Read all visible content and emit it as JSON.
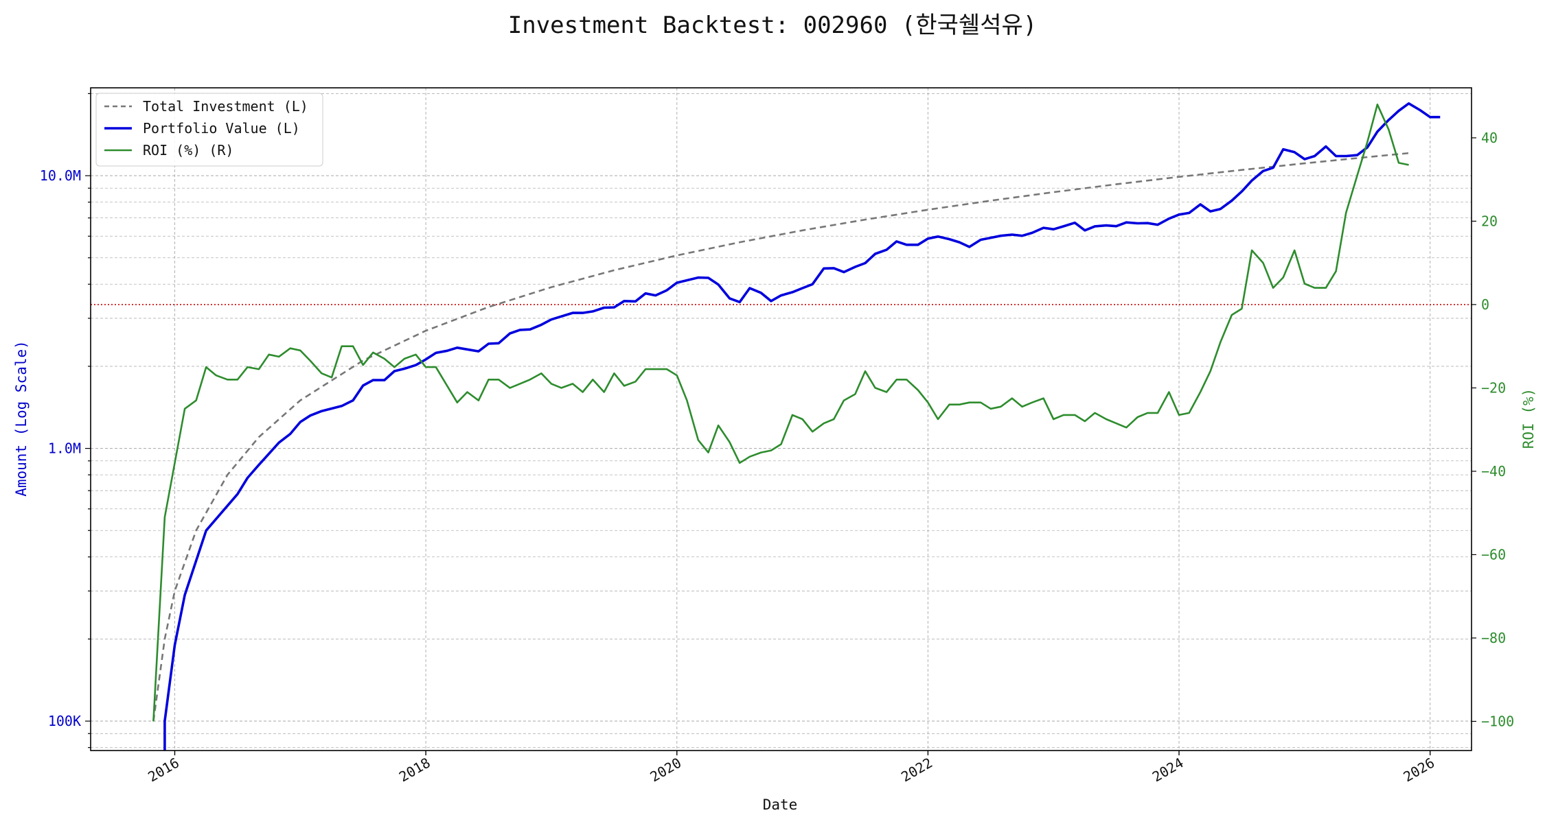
{
  "chart_data": {
    "type": "line",
    "title": "Investment Backtest: 002960 (한국쉘석유)",
    "xlabel": "Date",
    "ylabel_left": "Amount (Log Scale)",
    "ylabel_right": "ROI (%)",
    "left_scale": "log",
    "xlim": [
      2015.33,
      2026.33
    ],
    "ylim_left": [
      78000,
      21000000
    ],
    "ylim_right": [
      -107,
      52
    ],
    "x_ticks": [
      2016,
      2018,
      2020,
      2022,
      2024,
      2026
    ],
    "x_tick_labels": [
      "2016",
      "2018",
      "2020",
      "2022",
      "2024",
      "2026"
    ],
    "y_left_ticks": [
      100000,
      1000000,
      10000000
    ],
    "y_left_tick_labels": [
      "100K",
      "1.0M",
      "10.0M"
    ],
    "y_right_ticks": [
      -100,
      -80,
      -60,
      -40,
      -20,
      0,
      20,
      40
    ],
    "y_right_tick_labels": [
      "−100",
      "−80",
      "−60",
      "−40",
      "−20",
      "0",
      "20",
      "40"
    ],
    "zero_line_roi": 0,
    "grid": true,
    "legend_position": "top-left",
    "colors": {
      "total_investment": "#777777",
      "portfolio_value": "#0000dd",
      "roi": "#2d8c2d",
      "zero_line": "#cc0000",
      "left_axis_text": "#0000cc",
      "right_axis_text": "#2d8c2d",
      "grid": "#b0b0b0"
    },
    "series": [
      {
        "name": "Total Investment (L)",
        "axis": "left",
        "style": "dashed",
        "points": [
          [
            2015.83,
            100000
          ],
          [
            2015.92,
            200000
          ],
          [
            2016.0,
            300000
          ],
          [
            2016.17,
            500000
          ],
          [
            2016.42,
            800000
          ],
          [
            2016.67,
            1100000
          ],
          [
            2017.0,
            1500000
          ],
          [
            2017.5,
            2100000
          ],
          [
            2018.0,
            2700000
          ],
          [
            2018.5,
            3300000
          ],
          [
            2019.0,
            3900000
          ],
          [
            2019.5,
            4500000
          ],
          [
            2020.0,
            5100000
          ],
          [
            2020.5,
            5700000
          ],
          [
            2021.0,
            6300000
          ],
          [
            2021.5,
            6900000
          ],
          [
            2022.0,
            7500000
          ],
          [
            2022.5,
            8100000
          ],
          [
            2023.0,
            8700000
          ],
          [
            2023.5,
            9300000
          ],
          [
            2024.0,
            9900000
          ],
          [
            2024.5,
            10500000
          ],
          [
            2025.0,
            11100000
          ],
          [
            2025.5,
            11700000
          ],
          [
            2025.83,
            12100000
          ]
        ]
      },
      {
        "name": "Portfolio Value (L)",
        "axis": "left",
        "style": "solid-thick",
        "points": [
          [
            2015.92,
            78000
          ],
          [
            2015.92,
            100000
          ],
          [
            2016.0,
            190000
          ],
          [
            2016.08,
            290000
          ],
          [
            2016.25,
            500000
          ],
          [
            2016.5,
            680000
          ],
          [
            2016.58,
            780000
          ],
          [
            2016.67,
            870000
          ],
          [
            2016.83,
            1050000
          ],
          [
            2016.92,
            1130000
          ],
          [
            2017.0,
            1250000
          ],
          [
            2017.08,
            1320000
          ],
          [
            2017.17,
            1370000
          ],
          [
            2017.33,
            1430000
          ],
          [
            2017.42,
            1500000
          ],
          [
            2017.5,
            1700000
          ],
          [
            2017.58,
            1780000
          ],
          [
            2017.67,
            1780000
          ],
          [
            2017.75,
            1920000
          ],
          [
            2017.83,
            1960000
          ],
          [
            2017.92,
            2020000
          ],
          [
            2018.0,
            2120000
          ],
          [
            2018.08,
            2240000
          ],
          [
            2018.17,
            2280000
          ],
          [
            2018.25,
            2340000
          ],
          [
            2018.42,
            2270000
          ],
          [
            2018.5,
            2420000
          ],
          [
            2018.58,
            2430000
          ],
          [
            2018.67,
            2640000
          ],
          [
            2018.75,
            2720000
          ],
          [
            2018.83,
            2730000
          ],
          [
            2018.92,
            2840000
          ],
          [
            2019.0,
            2970000
          ],
          [
            2019.17,
            3140000
          ],
          [
            2019.25,
            3140000
          ],
          [
            2019.33,
            3180000
          ],
          [
            2019.42,
            3280000
          ],
          [
            2019.5,
            3290000
          ],
          [
            2019.58,
            3470000
          ],
          [
            2019.67,
            3460000
          ],
          [
            2019.75,
            3700000
          ],
          [
            2019.83,
            3640000
          ],
          [
            2019.92,
            3800000
          ],
          [
            2020.0,
            4050000
          ],
          [
            2020.17,
            4230000
          ],
          [
            2020.25,
            4220000
          ],
          [
            2020.33,
            3990000
          ],
          [
            2020.42,
            3550000
          ],
          [
            2020.5,
            3440000
          ],
          [
            2020.58,
            3870000
          ],
          [
            2020.67,
            3720000
          ],
          [
            2020.75,
            3470000
          ],
          [
            2020.83,
            3640000
          ],
          [
            2020.92,
            3740000
          ],
          [
            2021.0,
            3870000
          ],
          [
            2021.08,
            4000000
          ],
          [
            2021.17,
            4570000
          ],
          [
            2021.25,
            4580000
          ],
          [
            2021.33,
            4430000
          ],
          [
            2021.42,
            4630000
          ],
          [
            2021.5,
            4780000
          ],
          [
            2021.58,
            5170000
          ],
          [
            2021.67,
            5350000
          ],
          [
            2021.75,
            5740000
          ],
          [
            2021.83,
            5580000
          ],
          [
            2021.92,
            5580000
          ],
          [
            2022.0,
            5880000
          ],
          [
            2022.08,
            5980000
          ],
          [
            2022.17,
            5850000
          ],
          [
            2022.25,
            5700000
          ],
          [
            2022.33,
            5480000
          ],
          [
            2022.42,
            5820000
          ],
          [
            2022.5,
            5920000
          ],
          [
            2022.58,
            6020000
          ],
          [
            2022.67,
            6080000
          ],
          [
            2022.75,
            6020000
          ],
          [
            2022.83,
            6170000
          ],
          [
            2022.92,
            6440000
          ],
          [
            2023.0,
            6360000
          ],
          [
            2023.08,
            6520000
          ],
          [
            2023.17,
            6720000
          ],
          [
            2023.25,
            6300000
          ],
          [
            2023.33,
            6520000
          ],
          [
            2023.42,
            6570000
          ],
          [
            2023.5,
            6530000
          ],
          [
            2023.58,
            6740000
          ],
          [
            2023.67,
            6690000
          ],
          [
            2023.75,
            6700000
          ],
          [
            2023.83,
            6610000
          ],
          [
            2023.92,
            6960000
          ],
          [
            2024.0,
            7200000
          ],
          [
            2024.08,
            7300000
          ],
          [
            2024.17,
            7850000
          ],
          [
            2024.25,
            7400000
          ],
          [
            2024.33,
            7550000
          ],
          [
            2024.42,
            8100000
          ],
          [
            2024.5,
            8750000
          ],
          [
            2024.58,
            9600000
          ],
          [
            2024.67,
            10400000
          ],
          [
            2024.75,
            10700000
          ],
          [
            2024.83,
            12500000
          ],
          [
            2024.92,
            12200000
          ],
          [
            2025.0,
            11500000
          ],
          [
            2025.08,
            11800000
          ],
          [
            2025.17,
            12800000
          ],
          [
            2025.25,
            11800000
          ],
          [
            2025.33,
            11800000
          ],
          [
            2025.42,
            11900000
          ],
          [
            2025.5,
            12700000
          ],
          [
            2025.58,
            14500000
          ],
          [
            2025.67,
            16000000
          ],
          [
            2025.75,
            17300000
          ],
          [
            2025.83,
            18400000
          ],
          [
            2025.92,
            17400000
          ],
          [
            2026.0,
            16400000
          ],
          [
            2026.08,
            16400000
          ]
        ]
      },
      {
        "name": "ROI (%) (R)",
        "axis": "right",
        "style": "solid",
        "points": [
          [
            2015.83,
            -100
          ],
          [
            2015.92,
            -51
          ],
          [
            2016.0,
            -38
          ],
          [
            2016.08,
            -25
          ],
          [
            2016.17,
            -23
          ],
          [
            2016.25,
            -15
          ],
          [
            2016.33,
            -17
          ],
          [
            2016.42,
            -18
          ],
          [
            2016.5,
            -18
          ],
          [
            2016.58,
            -15
          ],
          [
            2016.67,
            -15.5
          ],
          [
            2016.75,
            -12
          ],
          [
            2016.83,
            -12.5
          ],
          [
            2016.92,
            -10.5
          ],
          [
            2017.0,
            -11
          ],
          [
            2017.08,
            -13.5
          ],
          [
            2017.17,
            -16.5
          ],
          [
            2017.25,
            -17.5
          ],
          [
            2017.33,
            -10
          ],
          [
            2017.42,
            -10
          ],
          [
            2017.5,
            -14.5
          ],
          [
            2017.58,
            -11.5
          ],
          [
            2017.67,
            -13
          ],
          [
            2017.75,
            -15
          ],
          [
            2017.83,
            -13
          ],
          [
            2017.92,
            -12
          ],
          [
            2018.0,
            -15
          ],
          [
            2018.08,
            -15
          ],
          [
            2018.17,
            -19.5
          ],
          [
            2018.25,
            -23.5
          ],
          [
            2018.33,
            -21
          ],
          [
            2018.42,
            -23
          ],
          [
            2018.5,
            -18
          ],
          [
            2018.58,
            -18
          ],
          [
            2018.67,
            -20
          ],
          [
            2018.75,
            -19
          ],
          [
            2018.83,
            -18
          ],
          [
            2018.92,
            -16.5
          ],
          [
            2019.0,
            -19
          ],
          [
            2019.08,
            -20
          ],
          [
            2019.17,
            -19
          ],
          [
            2019.25,
            -21
          ],
          [
            2019.33,
            -18
          ],
          [
            2019.42,
            -21
          ],
          [
            2019.5,
            -16.5
          ],
          [
            2019.58,
            -19.5
          ],
          [
            2019.67,
            -18.5
          ],
          [
            2019.75,
            -15.5
          ],
          [
            2019.83,
            -15.5
          ],
          [
            2019.92,
            -15.5
          ],
          [
            2020.0,
            -17
          ],
          [
            2020.08,
            -23
          ],
          [
            2020.17,
            -32.5
          ],
          [
            2020.25,
            -35.5
          ],
          [
            2020.33,
            -29
          ],
          [
            2020.42,
            -33
          ],
          [
            2020.5,
            -38
          ],
          [
            2020.58,
            -36.5
          ],
          [
            2020.67,
            -35.5
          ],
          [
            2020.75,
            -35
          ],
          [
            2020.83,
            -33.5
          ],
          [
            2020.92,
            -26.5
          ],
          [
            2021.0,
            -27.5
          ],
          [
            2021.08,
            -30.5
          ],
          [
            2021.17,
            -28.5
          ],
          [
            2021.25,
            -27.5
          ],
          [
            2021.33,
            -23
          ],
          [
            2021.42,
            -21.5
          ],
          [
            2021.5,
            -16
          ],
          [
            2021.58,
            -20
          ],
          [
            2021.67,
            -21
          ],
          [
            2021.75,
            -18
          ],
          [
            2021.83,
            -18
          ],
          [
            2021.92,
            -20.5
          ],
          [
            2022.0,
            -23.5
          ],
          [
            2022.08,
            -27.5
          ],
          [
            2022.17,
            -24
          ],
          [
            2022.25,
            -24
          ],
          [
            2022.33,
            -23.5
          ],
          [
            2022.42,
            -23.5
          ],
          [
            2022.5,
            -25
          ],
          [
            2022.58,
            -24.5
          ],
          [
            2022.67,
            -22.5
          ],
          [
            2022.75,
            -24.5
          ],
          [
            2022.83,
            -23.5
          ],
          [
            2022.92,
            -22.5
          ],
          [
            2023.0,
            -27.5
          ],
          [
            2023.08,
            -26.5
          ],
          [
            2023.17,
            -26.5
          ],
          [
            2023.25,
            -28
          ],
          [
            2023.33,
            -26
          ],
          [
            2023.42,
            -27.5
          ],
          [
            2023.5,
            -28.5
          ],
          [
            2023.58,
            -29.5
          ],
          [
            2023.67,
            -27
          ],
          [
            2023.75,
            -26
          ],
          [
            2023.83,
            -26
          ],
          [
            2023.92,
            -21
          ],
          [
            2024.0,
            -26.5
          ],
          [
            2024.08,
            -26
          ],
          [
            2024.17,
            -21
          ],
          [
            2024.25,
            -16
          ],
          [
            2024.33,
            -9
          ],
          [
            2024.42,
            -2.5
          ],
          [
            2024.5,
            -1
          ],
          [
            2024.58,
            13
          ],
          [
            2024.67,
            10
          ],
          [
            2024.75,
            4
          ],
          [
            2024.83,
            6.5
          ],
          [
            2024.92,
            13
          ],
          [
            2025.0,
            5
          ],
          [
            2025.08,
            4
          ],
          [
            2025.17,
            4
          ],
          [
            2025.25,
            8
          ],
          [
            2025.33,
            22
          ],
          [
            2025.42,
            31
          ],
          [
            2025.5,
            39
          ],
          [
            2025.58,
            48
          ],
          [
            2025.67,
            42
          ],
          [
            2025.75,
            34
          ],
          [
            2025.83,
            33.5
          ]
        ]
      }
    ]
  }
}
